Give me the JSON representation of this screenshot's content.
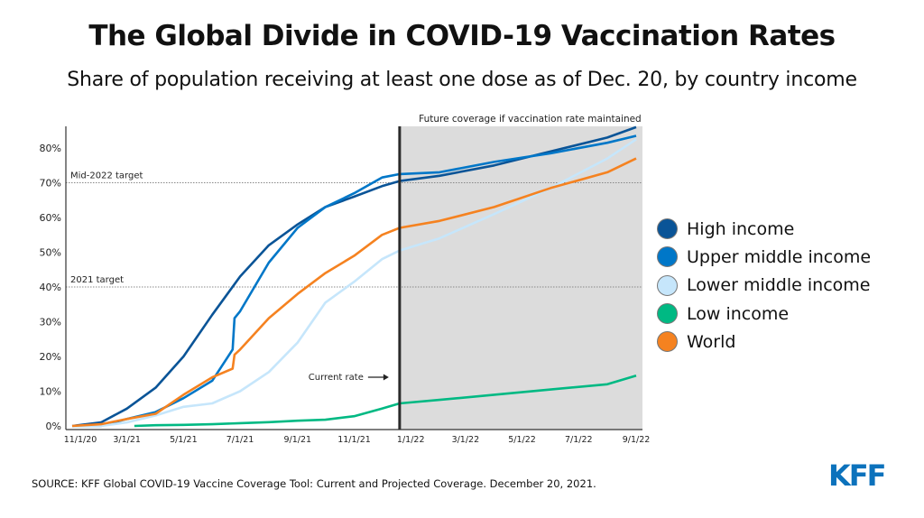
{
  "header": {
    "title": "The Global Divide in COVID-19 Vaccination Rates",
    "subtitle": "Share of population receiving at least one dose as of Dec. 20, by country income"
  },
  "chart_data": {
    "type": "line",
    "title": "The Global Divide in COVID-19 Vaccination Rates",
    "subtitle": "Share of population receiving at least one dose as of Dec. 20, by country income",
    "xlabel": "",
    "ylabel": "",
    "ylim": [
      0,
      85
    ],
    "y_ticks": [
      0,
      10,
      20,
      30,
      40,
      50,
      60,
      70,
      80
    ],
    "y_tick_labels": [
      "0%",
      "10%",
      "20%",
      "30%",
      "40%",
      "50%",
      "60%",
      "70%",
      "80%"
    ],
    "x_tick_labels": [
      "11/1/20",
      "3/1/21",
      "5/1/21",
      "7/1/21",
      "9/1/21",
      "11/1/21",
      "1/1/22",
      "3/1/22",
      "5/1/22",
      "7/1/22",
      "9/1/22"
    ],
    "x_ticks": [
      "2020-11-01",
      "2021-03-01",
      "2021-05-01",
      "2021-07-01",
      "2021-09-01",
      "2021-11-01",
      "2022-01-01",
      "2022-03-01",
      "2022-05-01",
      "2022-07-01",
      "2022-09-01"
    ],
    "grid": false,
    "legend_placement": "right",
    "current_date": "2021-12-20",
    "reference_lines": [
      {
        "label": "Mid-2022 target",
        "value": 70
      },
      {
        "label": "2021 target",
        "value": 40
      }
    ],
    "annotations": {
      "future_region": "Future coverage if vaccination rate maintained",
      "current_rate": "Current rate"
    },
    "x": [
      "2021-01-01",
      "2021-02-01",
      "2021-03-01",
      "2021-04-01",
      "2021-05-01",
      "2021-06-01",
      "2021-07-01",
      "2021-08-01",
      "2021-09-01",
      "2021-10-01",
      "2021-11-01",
      "2021-12-01",
      "2021-12-20",
      "2022-02-01",
      "2022-04-01",
      "2022-06-01",
      "2022-08-01",
      "2022-09-01"
    ],
    "series": [
      {
        "name": "High income",
        "color": "#0a5497",
        "values": [
          0,
          1,
          5,
          11,
          20,
          32,
          43,
          52,
          58,
          63,
          66,
          69,
          70.5,
          72,
          75,
          79,
          83,
          86
        ]
      },
      {
        "name": "Upper middle income",
        "color": "#0077c8",
        "values": [
          0,
          0,
          2,
          4,
          8,
          13,
          33,
          47,
          57,
          63,
          67,
          71.5,
          72.5,
          73,
          76,
          78.5,
          81.5,
          83.5
        ],
        "extra_points": [
          [
            "2021-06-23",
            22
          ],
          [
            "2021-06-25",
            31
          ]
        ]
      },
      {
        "name": "Lower middle income",
        "color": "#c6e6fb",
        "values": [
          0,
          0,
          1,
          3,
          5.5,
          6.5,
          10,
          15.5,
          24,
          35.5,
          41.5,
          48,
          50.5,
          54,
          61,
          68.5,
          77,
          82.5
        ]
      },
      {
        "name": "Low income",
        "color": "#00b983",
        "values": [
          null,
          null,
          null,
          0.2,
          0.3,
          0.5,
          0.8,
          1.1,
          1.5,
          1.8,
          2.8,
          5,
          6.5,
          7.5,
          9,
          10.5,
          12,
          14.5
        ],
        "start_point": [
          "2021-03-09",
          0
        ]
      },
      {
        "name": "World",
        "color": "#f58220",
        "values": [
          0,
          0.5,
          2,
          3.5,
          9,
          14,
          22,
          31,
          38,
          44,
          49,
          55,
          57,
          59,
          63,
          68.5,
          73,
          77
        ],
        "extra_points": [
          [
            "2021-06-23",
            16.5
          ],
          [
            "2021-06-25",
            20.5
          ]
        ]
      }
    ]
  },
  "legend": [
    {
      "label": "High income",
      "color": "#0a5497"
    },
    {
      "label": "Upper middle income",
      "color": "#0077c8"
    },
    {
      "label": "Lower middle income",
      "color": "#c6e6fb"
    },
    {
      "label": "Low income",
      "color": "#00b983"
    },
    {
      "label": "World",
      "color": "#f58220"
    }
  ],
  "footer": {
    "source": "SOURCE: KFF Global COVID-19 Vaccine Coverage Tool: Current and Projected Coverage. December 20, 2021.",
    "logo": "KFF",
    "logo_color": "#0c72bc"
  }
}
